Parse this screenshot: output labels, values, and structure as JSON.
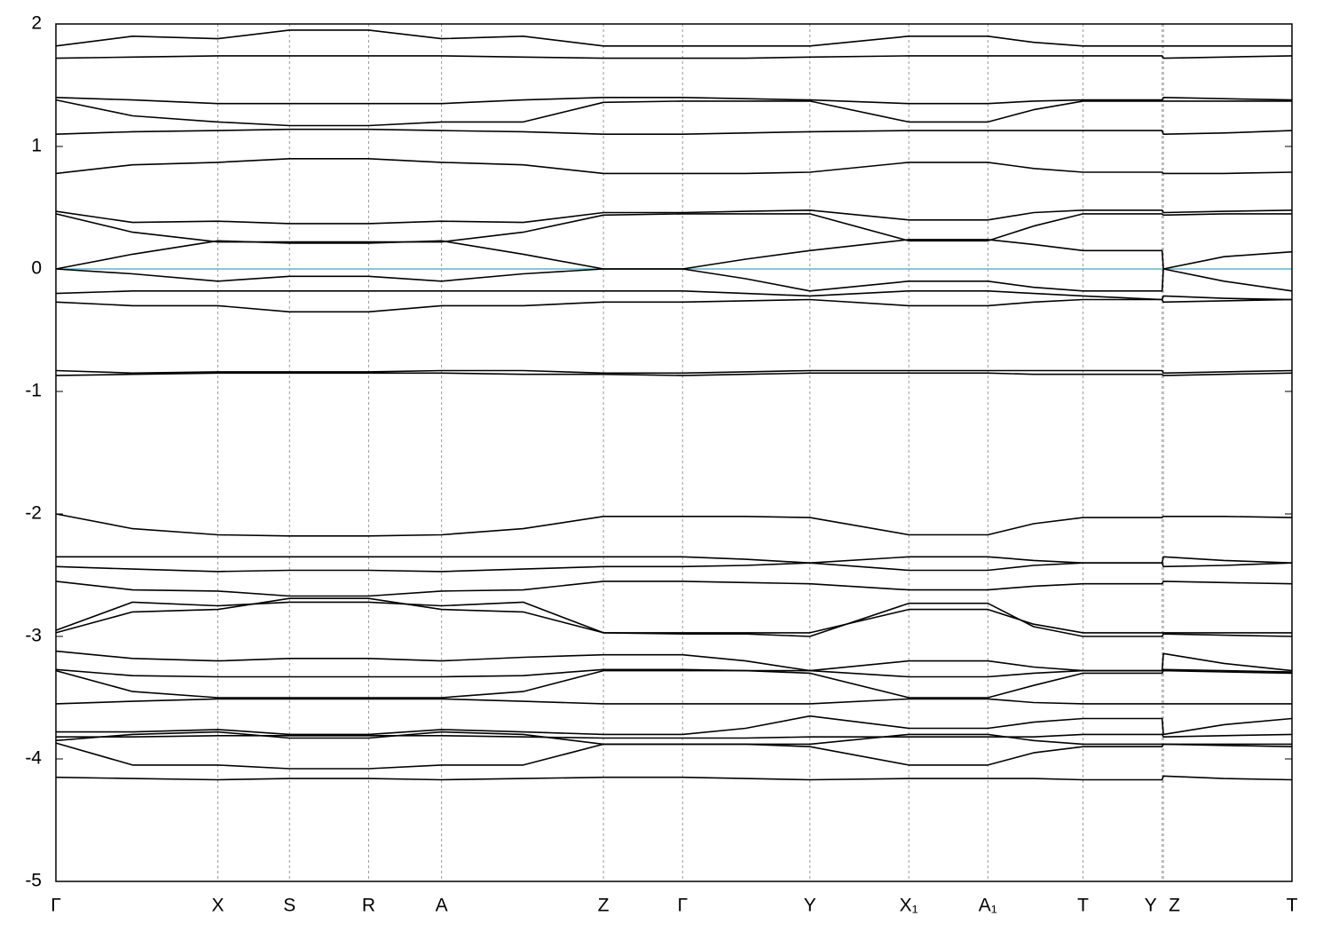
{
  "chart_data": {
    "type": "line",
    "x": [
      0,
      0.062,
      0.131,
      0.189,
      0.253,
      0.312,
      0.378,
      0.443,
      0.507,
      0.558,
      0.61,
      0.69,
      0.754,
      0.791,
      0.831,
      0.895,
      0.896,
      0.945,
      1.0
    ],
    "xlim": [
      0,
      1
    ],
    "ylim": [
      -5,
      2
    ],
    "xticks": [
      {
        "value": 0,
        "label": "Γ"
      },
      {
        "value": 0.131,
        "label": "X"
      },
      {
        "value": 0.189,
        "label": "S"
      },
      {
        "value": 0.253,
        "label": "R"
      },
      {
        "value": 0.312,
        "label": "A"
      },
      {
        "value": 0.443,
        "label": "Z"
      },
      {
        "value": 0.507,
        "label": "Γ"
      },
      {
        "value": 0.61,
        "label": "Y"
      },
      {
        "value": 0.69,
        "label": "X₁"
      },
      {
        "value": 0.754,
        "label": "A₁"
      },
      {
        "value": 0.831,
        "label": "T"
      },
      {
        "value": 0.895,
        "label": "Y"
      },
      {
        "value": 0.896,
        "label": "Z"
      },
      {
        "value": 1.0,
        "label": "T"
      }
    ],
    "yticks": [
      2,
      1,
      0,
      -1,
      -2,
      -3,
      -4,
      -5
    ],
    "grid": "x",
    "color": "#000000",
    "hline": 0,
    "hline_color": "#5fb4c8",
    "series": [
      {
        "values": [
          1.82,
          1.9,
          1.88,
          1.95,
          1.95,
          1.88,
          1.9,
          1.82,
          1.82,
          1.82,
          1.82,
          1.9,
          1.9,
          1.85,
          1.82,
          1.82,
          1.82,
          1.82,
          1.82
        ]
      },
      {
        "values": [
          1.72,
          1.73,
          1.74,
          1.74,
          1.74,
          1.74,
          1.73,
          1.72,
          1.72,
          1.72,
          1.73,
          1.74,
          1.74,
          1.74,
          1.74,
          1.74,
          1.72,
          1.73,
          1.74
        ]
      },
      {
        "values": [
          1.4,
          1.38,
          1.35,
          1.35,
          1.35,
          1.35,
          1.38,
          1.4,
          1.4,
          1.39,
          1.38,
          1.35,
          1.35,
          1.37,
          1.38,
          1.38,
          1.4,
          1.39,
          1.38
        ]
      },
      {
        "values": [
          1.38,
          1.25,
          1.2,
          1.17,
          1.17,
          1.2,
          1.2,
          1.36,
          1.37,
          1.37,
          1.37,
          1.2,
          1.2,
          1.3,
          1.37,
          1.37,
          1.37,
          1.37,
          1.37
        ]
      },
      {
        "values": [
          1.1,
          1.12,
          1.13,
          1.14,
          1.14,
          1.13,
          1.12,
          1.1,
          1.1,
          1.11,
          1.12,
          1.13,
          1.13,
          1.13,
          1.13,
          1.13,
          1.1,
          1.11,
          1.13
        ]
      },
      {
        "values": [
          0.78,
          0.85,
          0.87,
          0.9,
          0.9,
          0.87,
          0.85,
          0.78,
          0.78,
          0.78,
          0.79,
          0.87,
          0.87,
          0.82,
          0.79,
          0.79,
          0.78,
          0.78,
          0.79
        ]
      },
      {
        "values": [
          0.47,
          0.38,
          0.39,
          0.37,
          0.37,
          0.39,
          0.38,
          0.46,
          0.46,
          0.47,
          0.48,
          0.4,
          0.4,
          0.46,
          0.48,
          0.48,
          0.46,
          0.47,
          0.48
        ]
      },
      {
        "values": [
          0.45,
          0.3,
          0.22,
          0.22,
          0.22,
          0.22,
          0.3,
          0.44,
          0.45,
          0.45,
          0.45,
          0.23,
          0.23,
          0.35,
          0.45,
          0.45,
          0.44,
          0.45,
          0.45
        ]
      },
      {
        "values": [
          0,
          0.12,
          0.23,
          0.21,
          0.21,
          0.23,
          0.12,
          0,
          0,
          0.08,
          0.15,
          0.24,
          0.24,
          0.2,
          0.15,
          0.15,
          0,
          0.1,
          0.14
        ]
      },
      {
        "values": [
          0,
          -0.04,
          -0.1,
          -0.06,
          -0.06,
          -0.1,
          -0.04,
          0,
          0,
          -0.08,
          -0.18,
          -0.1,
          -0.1,
          -0.15,
          -0.18,
          -0.18,
          0,
          -0.1,
          -0.18
        ]
      },
      {
        "values": [
          -0.2,
          -0.18,
          -0.18,
          -0.18,
          -0.18,
          -0.18,
          -0.18,
          -0.18,
          -0.18,
          -0.2,
          -0.22,
          -0.18,
          -0.18,
          -0.2,
          -0.22,
          -0.25,
          -0.22,
          -0.24,
          -0.25
        ]
      },
      {
        "values": [
          -0.27,
          -0.3,
          -0.3,
          -0.35,
          -0.35,
          -0.3,
          -0.3,
          -0.27,
          -0.27,
          -0.26,
          -0.25,
          -0.3,
          -0.3,
          -0.27,
          -0.25,
          -0.25,
          -0.27,
          -0.26,
          -0.25
        ]
      },
      {
        "values": [
          -0.83,
          -0.85,
          -0.84,
          -0.84,
          -0.84,
          -0.83,
          -0.83,
          -0.85,
          -0.85,
          -0.84,
          -0.83,
          -0.83,
          -0.83,
          -0.83,
          -0.83,
          -0.83,
          -0.85,
          -0.84,
          -0.83
        ]
      },
      {
        "values": [
          -0.87,
          -0.86,
          -0.85,
          -0.85,
          -0.85,
          -0.85,
          -0.86,
          -0.86,
          -0.87,
          -0.86,
          -0.85,
          -0.85,
          -0.85,
          -0.86,
          -0.86,
          -0.86,
          -0.87,
          -0.86,
          -0.85
        ]
      },
      {
        "values": [
          -2.0,
          -2.12,
          -2.17,
          -2.18,
          -2.18,
          -2.17,
          -2.12,
          -2.02,
          -2.02,
          -2.02,
          -2.03,
          -2.17,
          -2.17,
          -2.08,
          -2.03,
          -2.03,
          -2.02,
          -2.02,
          -2.03
        ]
      },
      {
        "values": [
          -2.35,
          -2.35,
          -2.35,
          -2.35,
          -2.35,
          -2.35,
          -2.35,
          -2.35,
          -2.35,
          -2.37,
          -2.4,
          -2.35,
          -2.35,
          -2.38,
          -2.4,
          -2.4,
          -2.35,
          -2.38,
          -2.4
        ]
      },
      {
        "values": [
          -2.43,
          -2.45,
          -2.47,
          -2.46,
          -2.46,
          -2.47,
          -2.45,
          -2.43,
          -2.43,
          -2.42,
          -2.4,
          -2.46,
          -2.46,
          -2.42,
          -2.4,
          -2.4,
          -2.43,
          -2.42,
          -2.4
        ]
      },
      {
        "values": [
          -2.55,
          -2.62,
          -2.63,
          -2.67,
          -2.67,
          -2.63,
          -2.62,
          -2.55,
          -2.55,
          -2.56,
          -2.57,
          -2.62,
          -2.62,
          -2.59,
          -2.57,
          -2.57,
          -2.55,
          -2.56,
          -2.57
        ]
      },
      {
        "values": [
          -2.95,
          -2.72,
          -2.75,
          -2.72,
          -2.72,
          -2.75,
          -2.72,
          -2.97,
          -2.97,
          -2.97,
          -2.97,
          -2.78,
          -2.78,
          -2.9,
          -2.97,
          -2.97,
          -2.97,
          -2.97,
          -2.97
        ]
      },
      {
        "values": [
          -2.97,
          -2.8,
          -2.78,
          -2.69,
          -2.69,
          -2.78,
          -2.8,
          -2.97,
          -2.98,
          -2.98,
          -3.0,
          -2.73,
          -2.73,
          -2.92,
          -3.0,
          -3.0,
          -2.98,
          -2.99,
          -3.0
        ]
      },
      {
        "values": [
          -3.12,
          -3.18,
          -3.2,
          -3.18,
          -3.18,
          -3.2,
          -3.17,
          -3.15,
          -3.15,
          -3.2,
          -3.28,
          -3.2,
          -3.2,
          -3.25,
          -3.28,
          -3.28,
          -3.14,
          -3.22,
          -3.28
        ]
      },
      {
        "values": [
          -3.27,
          -3.32,
          -3.33,
          -3.33,
          -3.33,
          -3.33,
          -3.32,
          -3.27,
          -3.27,
          -3.28,
          -3.28,
          -3.33,
          -3.33,
          -3.3,
          -3.28,
          -3.28,
          -3.27,
          -3.28,
          -3.29
        ]
      },
      {
        "values": [
          -3.28,
          -3.45,
          -3.5,
          -3.5,
          -3.5,
          -3.5,
          -3.45,
          -3.28,
          -3.28,
          -3.28,
          -3.3,
          -3.5,
          -3.5,
          -3.4,
          -3.3,
          -3.3,
          -3.28,
          -3.29,
          -3.3
        ]
      },
      {
        "values": [
          -3.55,
          -3.53,
          -3.51,
          -3.51,
          -3.51,
          -3.51,
          -3.53,
          -3.55,
          -3.55,
          -3.55,
          -3.55,
          -3.51,
          -3.51,
          -3.54,
          -3.55,
          -3.55,
          -3.55,
          -3.55,
          -3.55
        ]
      },
      {
        "values": [
          -3.78,
          -3.78,
          -3.76,
          -3.8,
          -3.8,
          -3.76,
          -3.78,
          -3.8,
          -3.8,
          -3.75,
          -3.65,
          -3.75,
          -3.75,
          -3.7,
          -3.67,
          -3.67,
          -3.8,
          -3.72,
          -3.67
        ]
      },
      {
        "values": [
          -3.82,
          -3.82,
          -3.81,
          -3.81,
          -3.81,
          -3.81,
          -3.82,
          -3.83,
          -3.83,
          -3.83,
          -3.82,
          -3.82,
          -3.82,
          -3.82,
          -3.8,
          -3.8,
          -3.82,
          -3.81,
          -3.8
        ]
      },
      {
        "values": [
          -3.85,
          -3.8,
          -3.78,
          -3.83,
          -3.83,
          -3.78,
          -3.8,
          -3.88,
          -3.88,
          -3.88,
          -3.88,
          -3.8,
          -3.8,
          -3.85,
          -3.88,
          -3.88,
          -3.88,
          -3.88,
          -3.88
        ]
      },
      {
        "values": [
          -3.87,
          -4.05,
          -4.05,
          -4.08,
          -4.08,
          -4.05,
          -4.05,
          -3.88,
          -3.88,
          -3.88,
          -3.9,
          -4.05,
          -4.05,
          -3.95,
          -3.9,
          -3.9,
          -3.88,
          -3.89,
          -3.9
        ]
      },
      {
        "values": [
          -4.15,
          -4.16,
          -4.17,
          -4.16,
          -4.16,
          -4.17,
          -4.16,
          -4.15,
          -4.15,
          -4.16,
          -4.17,
          -4.16,
          -4.16,
          -4.16,
          -4.17,
          -4.17,
          -4.14,
          -4.16,
          -4.17
        ]
      }
    ]
  }
}
